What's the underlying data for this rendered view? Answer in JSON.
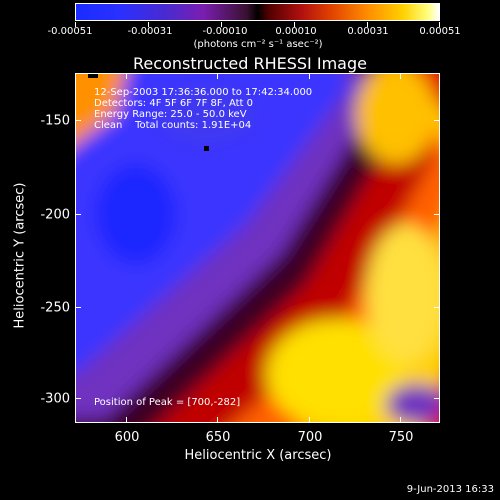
{
  "colorbar": {
    "tick_labels": [
      "-0.00051",
      "-0.00031",
      "-0.00010",
      "0.00010",
      "0.00031",
      "0.00051"
    ],
    "unit_text": "(photons cm⁻² s⁻¹ asec⁻²)"
  },
  "title": "Reconstructed RHESSI Image",
  "info": {
    "line1": "12-Sep-2003 17:36:36.000 to 17:42:34.000",
    "line2": "Detectors: 4F 5F 6F 7F 8F, Att 0",
    "line3": "Energy Range: 25.0 - 50.0 keV",
    "line4": "Clean    Total counts: 1.91E+04",
    "peak": "Position of Peak = [700,-282]"
  },
  "axes": {
    "x_title": "Heliocentric X (arcsec)",
    "y_title": "Heliocentric Y (arcsec)",
    "x_ticks": [
      "600",
      "650",
      "700",
      "750"
    ],
    "y_ticks": [
      "-150",
      "-200",
      "-250",
      "-300"
    ]
  },
  "timestamp": "9-Jun-2013 16:33",
  "colors": {
    "background": "#000000",
    "negative": "#2a30ff",
    "positive": "#ffd000"
  }
}
